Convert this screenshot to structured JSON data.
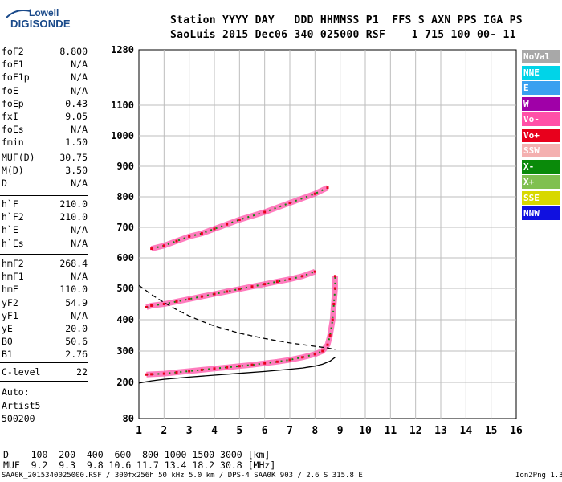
{
  "logo": {
    "line1": "Lowell",
    "line2": "DIGISONDE"
  },
  "header": {
    "line1": "Station YYYY DAY   DDD HHMMSS P1  FFS S AXN PPS IGA PS",
    "line2": "SaoLuis 2015 Dec06 340 025000 RSF    1 715 100 00- 11"
  },
  "params_group1": [
    {
      "label": "foF2",
      "value": "8.800"
    },
    {
      "label": "foF1",
      "value": "N/A"
    },
    {
      "label": "foF1p",
      "value": "N/A"
    },
    {
      "label": "foE",
      "value": "N/A"
    },
    {
      "label": "foEp",
      "value": "0.43"
    },
    {
      "label": "fxI",
      "value": "9.05"
    },
    {
      "label": "foEs",
      "value": "N/A"
    },
    {
      "label": "fmin",
      "value": "1.50"
    }
  ],
  "params_group2": [
    {
      "label": "MUF(D)",
      "value": "30.75"
    },
    {
      "label": "M(D)",
      "value": "3.50"
    },
    {
      "label": "D",
      "value": "N/A"
    }
  ],
  "params_group3": [
    {
      "label": "h`F",
      "value": "210.0"
    },
    {
      "label": "h`F2",
      "value": "210.0"
    },
    {
      "label": "h`E",
      "value": "N/A"
    },
    {
      "label": "h`Es",
      "value": "N/A"
    }
  ],
  "params_group4": [
    {
      "label": "hmF2",
      "value": "268.4"
    },
    {
      "label": "hmF1",
      "value": "N/A"
    },
    {
      "label": "hmE",
      "value": "110.0"
    },
    {
      "label": "yF2",
      "value": "54.9"
    },
    {
      "label": "yF1",
      "value": "N/A"
    },
    {
      "label": "yE",
      "value": "20.0"
    },
    {
      "label": "B0",
      "value": "50.6"
    },
    {
      "label": "B1",
      "value": "2.76"
    }
  ],
  "params_group5": [
    {
      "label": "C-level",
      "value": "22"
    }
  ],
  "autoscaling": [
    "Auto:",
    "Artist5",
    "500200"
  ],
  "legend": [
    {
      "label": "NoVal",
      "color": "#a8a8a8"
    },
    {
      "label": "NNE",
      "color": "#00d4e8"
    },
    {
      "label": "E",
      "color": "#3aa0f0"
    },
    {
      "label": "W",
      "color": "#a000a8"
    },
    {
      "label": "Vo-",
      "color": "#ff50a8"
    },
    {
      "label": "Vo+",
      "color": "#e8001c"
    },
    {
      "label": "SSW",
      "color": "#f4b0b0"
    },
    {
      "label": "X-",
      "color": "#0a8a0a"
    },
    {
      "label": "X+",
      "color": "#80c050"
    },
    {
      "label": "SSE",
      "color": "#d8d800"
    },
    {
      "label": "NNW",
      "color": "#1010e0"
    }
  ],
  "muf_table": {
    "d_row": "D    100  200  400  600  800 1000 1500 3000 [km]",
    "muf_row": "MUF  9.2  9.3  9.8 10.6 11.7 13.4 18.2 30.8 [MHz]"
  },
  "footer": {
    "left": "SAA0K_2015340025000.RSF / 300fx256h 50 kHz 5.0 km / DPS-4 SAA0K 903 / 2.6 S 315.8 E",
    "right": "Ion2Png 1.3.17"
  },
  "chart_data": {
    "type": "scatter",
    "title": "",
    "xlabel": "",
    "ylabel": "",
    "xlim": [
      1,
      16
    ],
    "ylim": [
      80,
      1280
    ],
    "x_ticks": [
      1,
      2,
      3,
      4,
      5,
      6,
      7,
      8,
      9,
      10,
      11,
      12,
      13,
      14,
      15,
      16
    ],
    "y_ticks": [
      80,
      200,
      300,
      400,
      500,
      600,
      700,
      800,
      900,
      1000,
      1100,
      1280
    ],
    "series": [
      {
        "kind": "echo_trace",
        "points": [
          [
            1.3,
            225
          ],
          [
            1.5,
            226
          ],
          [
            2,
            228
          ],
          [
            2.5,
            232
          ],
          [
            3,
            236
          ],
          [
            3.5,
            240
          ],
          [
            4,
            244
          ],
          [
            4.5,
            248
          ],
          [
            5,
            252
          ],
          [
            5.5,
            256
          ],
          [
            6,
            261
          ],
          [
            6.5,
            266
          ],
          [
            7,
            272
          ],
          [
            7.5,
            280
          ],
          [
            8,
            290
          ],
          [
            8.3,
            300
          ],
          [
            8.5,
            320
          ],
          [
            8.6,
            350
          ],
          [
            8.7,
            400
          ],
          [
            8.75,
            450
          ],
          [
            8.8,
            500
          ],
          [
            8.8,
            540
          ]
        ]
      },
      {
        "kind": "echo_trace",
        "points": [
          [
            1.3,
            440
          ],
          [
            1.5,
            445
          ],
          [
            2,
            450
          ],
          [
            2.5,
            458
          ],
          [
            3,
            466
          ],
          [
            3.5,
            474
          ],
          [
            4,
            482
          ],
          [
            4.5,
            490
          ],
          [
            5,
            498
          ],
          [
            5.5,
            506
          ],
          [
            6,
            514
          ],
          [
            6.5,
            522
          ],
          [
            7,
            530
          ],
          [
            7.5,
            540
          ],
          [
            8,
            555
          ]
        ]
      },
      {
        "kind": "echo_trace",
        "points": [
          [
            1.5,
            630
          ],
          [
            2,
            640
          ],
          [
            2.5,
            655
          ],
          [
            3,
            670
          ],
          [
            3.5,
            680
          ],
          [
            4,
            695
          ],
          [
            4.5,
            710
          ],
          [
            5,
            725
          ],
          [
            6,
            750
          ],
          [
            7,
            780
          ],
          [
            8,
            810
          ],
          [
            8.5,
            830
          ]
        ]
      },
      {
        "kind": "model_profile",
        "style": "solid",
        "points": [
          [
            1,
            198
          ],
          [
            1.5,
            205
          ],
          [
            2,
            210
          ],
          [
            3,
            217
          ],
          [
            4,
            223
          ],
          [
            5,
            229
          ],
          [
            6,
            235
          ],
          [
            7,
            242
          ],
          [
            7.5,
            246
          ],
          [
            8,
            252
          ],
          [
            8.3,
            258
          ],
          [
            8.6,
            268
          ],
          [
            8.8,
            280
          ]
        ]
      },
      {
        "kind": "model_profile",
        "style": "dashed",
        "points": [
          [
            1,
            510
          ],
          [
            1.5,
            480
          ],
          [
            2,
            455
          ],
          [
            2.5,
            432
          ],
          [
            3,
            412
          ],
          [
            3.5,
            395
          ],
          [
            4,
            380
          ],
          [
            5,
            357
          ],
          [
            6,
            340
          ],
          [
            7,
            326
          ],
          [
            8,
            315
          ],
          [
            8.5,
            310
          ],
          [
            8.8,
            305
          ]
        ]
      }
    ]
  }
}
